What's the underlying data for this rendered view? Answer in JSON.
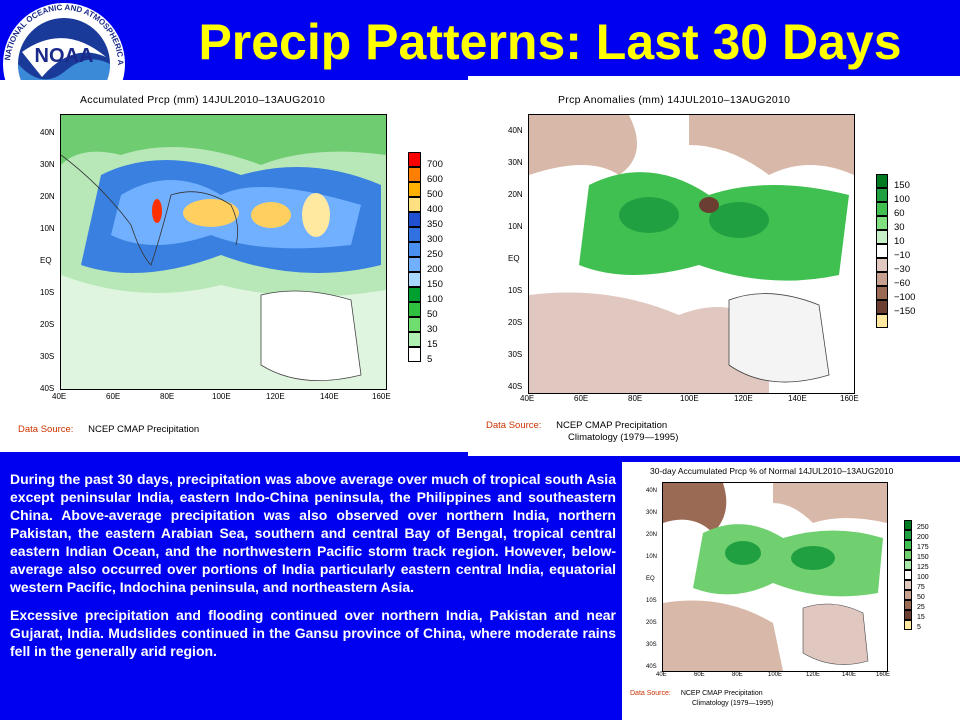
{
  "title": "Precip Patterns: Last 30 Days",
  "logo": {
    "text": "NOAA",
    "ring_text": "NATIONAL OCEANIC AND ATMOSPHERIC ADMINISTRATION",
    "icon": "noaa-logo-icon"
  },
  "panels": {
    "accum": {
      "title": "Accumulated Prcp (mm) 14JUL2010–13AUG2010",
      "source_label": "Data Source:",
      "source": "NCEP CMAP Precipitation",
      "lat_labels": [
        "40N",
        "30N",
        "20N",
        "10N",
        "EQ",
        "10S",
        "20S",
        "30S",
        "40S"
      ],
      "lon_labels": [
        "40E",
        "60E",
        "80E",
        "100E",
        "120E",
        "140E",
        "160E"
      ],
      "legend": [
        "700",
        "600",
        "500",
        "400",
        "350",
        "300",
        "250",
        "200",
        "150",
        "100",
        "50",
        "30",
        "15",
        "5"
      ],
      "legend_colors": [
        "#ff0000",
        "#ff7f00",
        "#ffb000",
        "#ffe080",
        "#2050d0",
        "#3070e0",
        "#4a90f0",
        "#70b0ff",
        "#a8d8ff",
        "#00a030",
        "#30c040",
        "#70dd70",
        "#b0f0b0",
        "#ffffff"
      ]
    },
    "anom": {
      "title": "Prcp Anomalies (mm) 14JUL2010–13AUG2010",
      "source_label": "Data Source:",
      "source": "NCEP CMAP Precipitation",
      "source2": "Climatology (1979—1995)",
      "lat_labels": [
        "40N",
        "30N",
        "20N",
        "10N",
        "EQ",
        "10S",
        "20S",
        "30S",
        "40S"
      ],
      "lon_labels": [
        "40E",
        "60E",
        "80E",
        "100E",
        "120E",
        "140E",
        "160E"
      ],
      "legend": [
        "150",
        "100",
        "60",
        "30",
        "10",
        "−10",
        "−30",
        "−60",
        "−100",
        "−150"
      ],
      "legend_colors": [
        "#007a20",
        "#20a040",
        "#40c050",
        "#80e080",
        "#c8f0c8",
        "#ffffff",
        "#e0c8c0",
        "#c8a090",
        "#9a6a55",
        "#6a3e30",
        "#ffe8a0"
      ]
    },
    "pct": {
      "title": "30-day Accumulated Prcp % of Normal 14JUL2010–13AUG2010",
      "source_label": "Data Source:",
      "source": "NCEP CMAP Precipitation",
      "source2": "Climatology (1979—1995)",
      "lat_labels": [
        "40N",
        "30N",
        "20N",
        "10N",
        "EQ",
        "10S",
        "20S",
        "30S",
        "40S"
      ],
      "lon_labels": [
        "40E",
        "60E",
        "80E",
        "100E",
        "120E",
        "140E",
        "160E"
      ],
      "legend": [
        "250",
        "200",
        "175",
        "150",
        "125",
        "100",
        "75",
        "50",
        "25",
        "15",
        "5"
      ],
      "legend_colors": [
        "#007a20",
        "#20a040",
        "#40c050",
        "#70d070",
        "#a8e8a8",
        "#ffffff",
        "#e0c8c0",
        "#c8a090",
        "#9a6a55",
        "#6a3e30",
        "#ffe8a0"
      ]
    }
  },
  "text": {
    "p1": "During the past 30 days, precipitation was above average over much of tropical south Asia except peninsular India, eastern Indo-China peninsula, the Philippines and southeastern China. Above-average precipitation was also observed over northern India, northern Pakistan, the eastern Arabian Sea, southern and central Bay of Bengal, tropical central eastern Indian Ocean, and the northwestern Pacific storm track region. However, below-average also occurred over portions of India particularly eastern central India, equatorial western Pacific, Indochina peninsula, and northeastern Asia.",
    "p2": "Excessive precipitation and flooding continued over northern India, Pakistan and near Gujarat, India. Mudslides continued in the Gansu province of China, where moderate rains fell in the generally arid region."
  }
}
